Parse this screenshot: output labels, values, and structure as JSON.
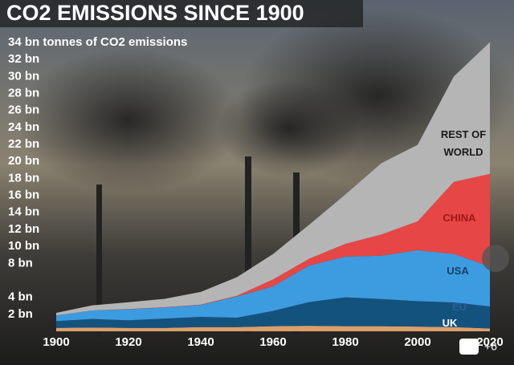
{
  "chart_data": {
    "type": "stacked-area",
    "title": "CO2 EMISSIONS SINCE 1900",
    "x": [
      1900,
      1910,
      1920,
      1930,
      1940,
      1950,
      1960,
      1970,
      1980,
      1990,
      2000,
      2010,
      2020
    ],
    "xlim": [
      1900,
      2020
    ],
    "xticks": [
      1900,
      1920,
      1940,
      1960,
      1980,
      2000,
      2020
    ],
    "ylim": [
      0,
      34
    ],
    "yticks": [
      {
        "value": 2,
        "label": "2 bn"
      },
      {
        "value": 4,
        "label": "4 bn"
      },
      {
        "value": 8,
        "label": "8 bn"
      },
      {
        "value": 10,
        "label": "10 bn"
      },
      {
        "value": 12,
        "label": "12 bn"
      },
      {
        "value": 14,
        "label": "14 bn"
      },
      {
        "value": 16,
        "label": "16 bn"
      },
      {
        "value": 18,
        "label": "18 bn"
      },
      {
        "value": 20,
        "label": "20 bn"
      },
      {
        "value": 22,
        "label": "22 bn"
      },
      {
        "value": 24,
        "label": "24 bn"
      },
      {
        "value": 26,
        "label": "26 bn"
      },
      {
        "value": 28,
        "label": "28 bn"
      },
      {
        "value": 30,
        "label": "30 bn"
      },
      {
        "value": 32,
        "label": "32 bn"
      },
      {
        "value": 34,
        "label": "34 bn tonnes of CO2 emissions"
      }
    ],
    "series": [
      {
        "name": "UK",
        "color": "#d9a06b",
        "values": [
          0.4,
          0.45,
          0.4,
          0.4,
          0.5,
          0.5,
          0.6,
          0.65,
          0.6,
          0.6,
          0.55,
          0.5,
          0.33
        ]
      },
      {
        "name": "EU",
        "color": "#14527e",
        "values": [
          0.8,
          1.0,
          0.9,
          1.1,
          1.2,
          1.1,
          1.8,
          2.8,
          3.4,
          3.2,
          3.0,
          2.9,
          2.6
        ]
      },
      {
        "name": "USA",
        "color": "#3d9be0",
        "values": [
          0.66,
          1.0,
          1.3,
          1.3,
          1.4,
          2.5,
          2.9,
          4.3,
          4.8,
          5.1,
          6.0,
          5.7,
          4.7
        ]
      },
      {
        "name": "CHINA",
        "color": "#e64646",
        "values": [
          0.01,
          0.01,
          0.02,
          0.03,
          0.04,
          0.08,
          0.8,
          0.8,
          1.5,
          2.5,
          3.4,
          8.5,
          10.9
        ]
      },
      {
        "name": "REST OF WORLD",
        "color": "#b5b5b5",
        "values": [
          0.3,
          0.6,
          0.8,
          1.0,
          1.5,
          2.2,
          3.0,
          4.0,
          5.8,
          8.4,
          9.0,
          12.4,
          15.5
        ]
      }
    ]
  },
  "overlay": {
    "photo_count": "+6"
  }
}
